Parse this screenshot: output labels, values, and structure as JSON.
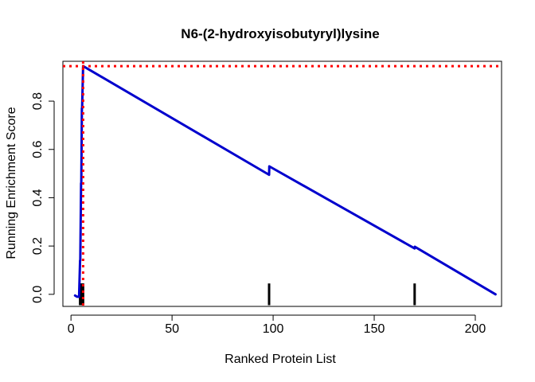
{
  "chart_data": {
    "type": "line",
    "title": "N6-(2-hydroxyisobutyryl)lysine",
    "xlabel": "Ranked Protein List",
    "ylabel": "Running Enrichment Score",
    "xlim": [
      -4,
      213
    ],
    "ylim": [
      -0.05,
      0.965
    ],
    "xticks": [
      0,
      50,
      100,
      150,
      200
    ],
    "yticks": [
      0.0,
      0.2,
      0.4,
      0.6,
      0.8
    ],
    "ytick_labels": [
      "0.0",
      "0.2",
      "0.4",
      "0.6",
      "0.8"
    ],
    "grid": false,
    "series": [
      {
        "color": "#0000cd",
        "x": [
          2,
          3,
          4,
          4.5,
          4.6,
          5,
          5.1,
          5.4,
          5.5,
          6,
          98,
          98.1,
          170,
          170.1,
          210
        ],
        "y": [
          -0.005,
          -0.01,
          -0.01,
          0.14,
          0.14,
          0.46,
          0.46,
          0.77,
          0.77,
          0.945,
          0.495,
          0.53,
          0.19,
          0.197,
          0.0
        ]
      }
    ],
    "hits": {
      "color": "#000000",
      "x": [
        4.5,
        5,
        5.5,
        6,
        98,
        170
      ],
      "y_bottom": -0.045,
      "y_top": 0.045
    },
    "peak_lines": {
      "color": "#ff0000",
      "x": 6,
      "y": 0.945
    }
  }
}
